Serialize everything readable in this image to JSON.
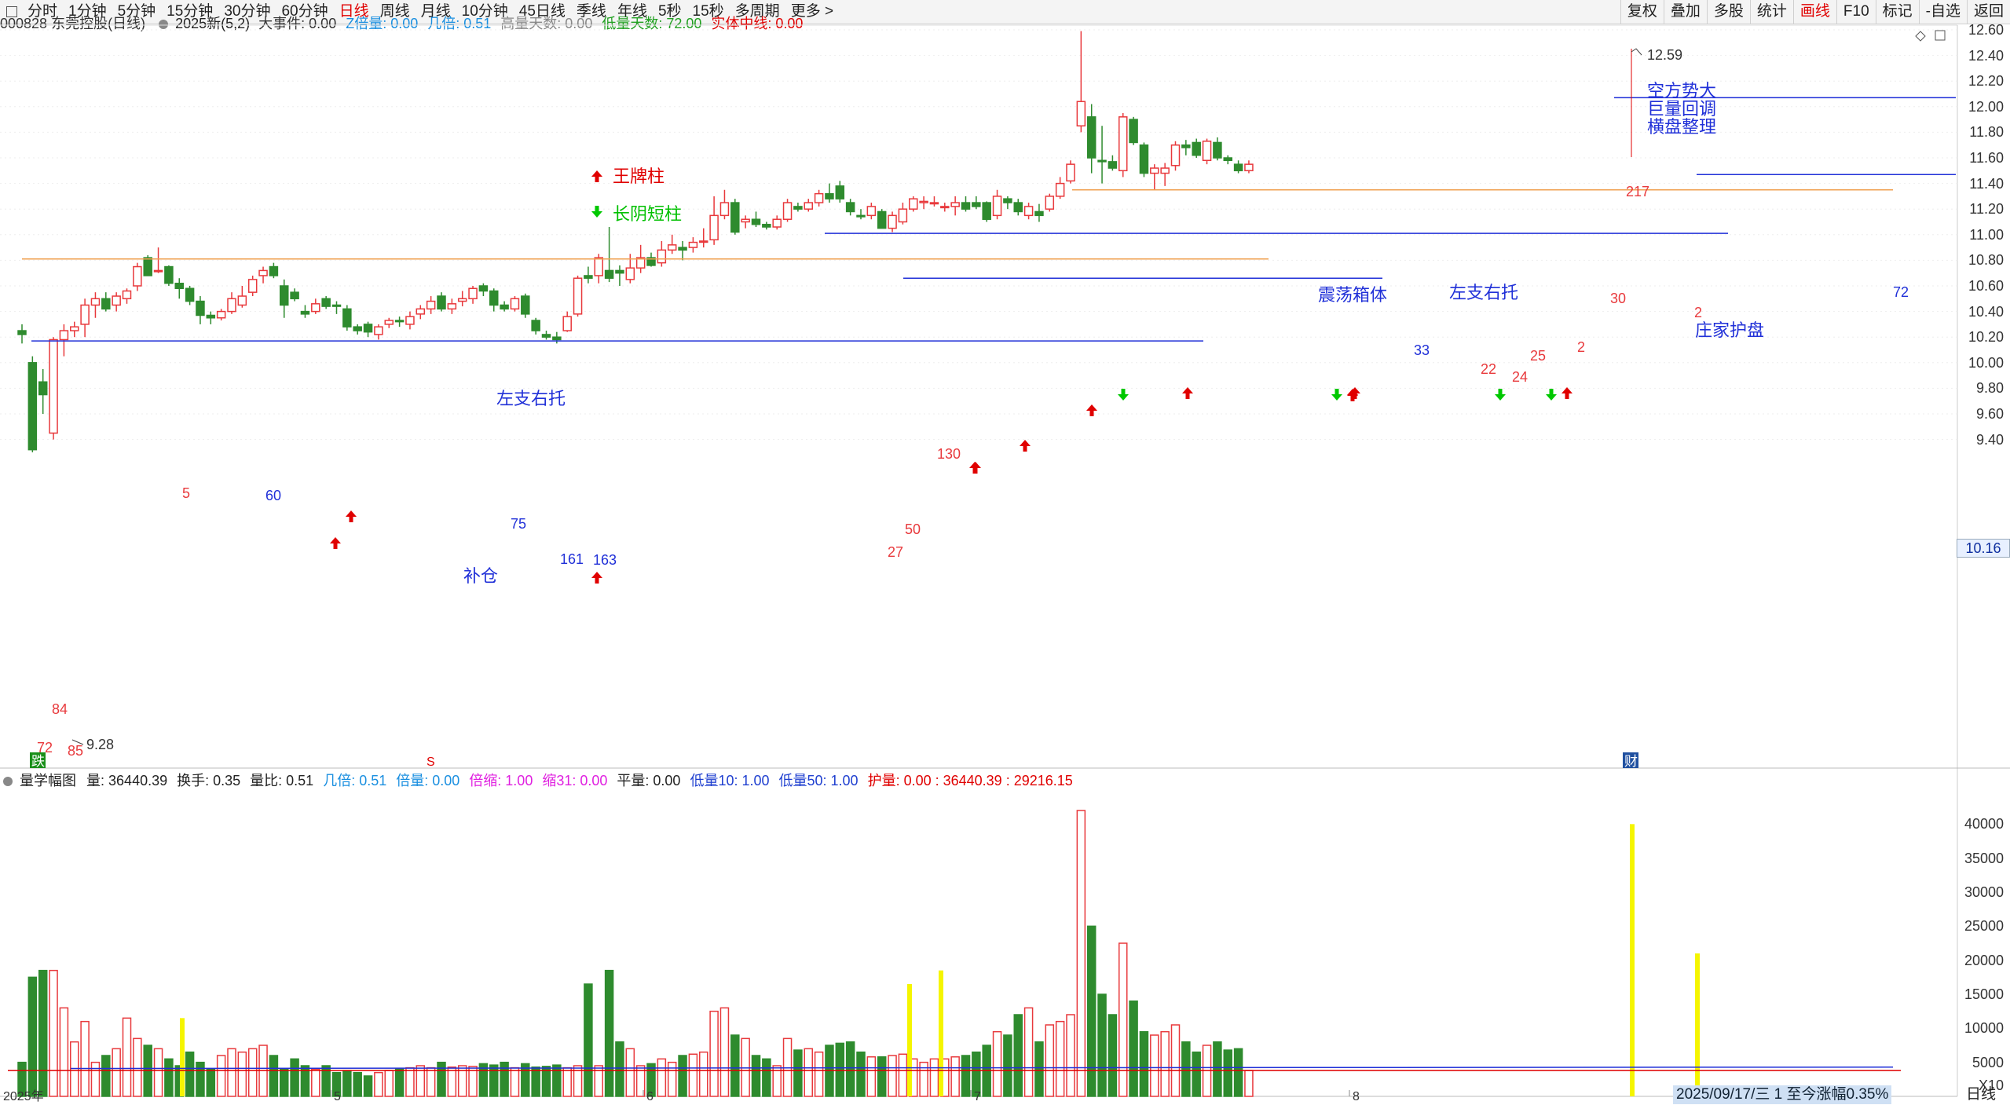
{
  "toolbar": {
    "periods": [
      "分时",
      "1分钟",
      "5分钟",
      "15分钟",
      "30分钟",
      "60分钟",
      "日线",
      "周线",
      "月线",
      "10分钟",
      "45日线",
      "季线",
      "年线",
      "5秒",
      "15秒",
      "多周期",
      "更多 >"
    ],
    "active": "日线",
    "right_buttons": [
      "复权",
      "叠加",
      "多股",
      "统计",
      "画线",
      "F10",
      "标记",
      "-自选",
      "返回"
    ],
    "right_active": "画线"
  },
  "main_indicator": {
    "stock": "000828 东莞控股(日线)",
    "formula": "2025新(5,2)",
    "items": [
      {
        "label": "大事件: 0.00",
        "color": "#333333"
      },
      {
        "label": "Z倍量: 0.00",
        "color": "#1a8fe0"
      },
      {
        "label": "几倍: 0.51",
        "color": "#1a8fe0"
      },
      {
        "label": "高量天数: 0.00",
        "color": "#888888"
      },
      {
        "label": "低量天数: 72.00",
        "color": "#20a020"
      },
      {
        "label": "实体中线: 0.00",
        "color": "#e00000"
      }
    ]
  },
  "price_axis": [
    "12.60",
    "12.40",
    "12.20",
    "12.00",
    "11.80",
    "11.60",
    "11.40",
    "11.20",
    "11.00",
    "10.80",
    "10.60",
    "10.40",
    "10.20",
    "10.00",
    "9.80",
    "9.60",
    "9.40"
  ],
  "current_price": "10.16",
  "annotations": {
    "legend_up": "王牌柱",
    "legend_down": "长阴短柱",
    "zuozhi1": "左支右托",
    "buchang": "补仓",
    "zhendang": "震荡箱体",
    "zuozhi2": "左支右托",
    "kongfang": [
      "空方势大",
      "巨量回调",
      "横盘整理"
    ],
    "zhuangjia": "庄家护盘",
    "high_label": "12.59",
    "low_label": "9.28"
  },
  "bar_numbers": [
    "72",
    "85",
    "84",
    "5",
    "60",
    "75",
    "161",
    "163",
    "50",
    "27",
    "130",
    "33",
    "22",
    "24",
    "25",
    "2",
    "30",
    "217",
    "2",
    "72"
  ],
  "volume_indicator": {
    "name": "量学幅图",
    "items": [
      {
        "label": "量: 36440.39",
        "color": "#222222"
      },
      {
        "label": "换手: 0.35",
        "color": "#222222"
      },
      {
        "label": "量比: 0.51",
        "color": "#222222"
      },
      {
        "label": "几倍: 0.51",
        "color": "#1a8fe0"
      },
      {
        "label": "倍量: 0.00",
        "color": "#1a8fe0"
      },
      {
        "label": "倍缩: 1.00",
        "color": "#e020e0"
      },
      {
        "label": "缩31: 0.00",
        "color": "#e020e0"
      },
      {
        "label": "平量: 0.00",
        "color": "#222222"
      },
      {
        "label": "低量10: 1.00",
        "color": "#2040d0"
      },
      {
        "label": "低量50: 1.00",
        "color": "#2040d0"
      },
      {
        "label": "护量: 0.00 : 36440.39 : 29216.15",
        "color": "#e00000"
      }
    ]
  },
  "volume_axis": [
    "40000",
    "35000",
    "30000",
    "25000",
    "20000",
    "15000",
    "10000",
    "5000",
    "X10"
  ],
  "x_axis": {
    "year": "2025年",
    "months": [
      "5",
      "6",
      "7",
      "8"
    ]
  },
  "markers": {
    "die": "跌",
    "cai": "财",
    "s": "S"
  },
  "status": {
    "date": "2025/09/17/三 1 至今涨幅0.35%",
    "period": "日线"
  }
}
